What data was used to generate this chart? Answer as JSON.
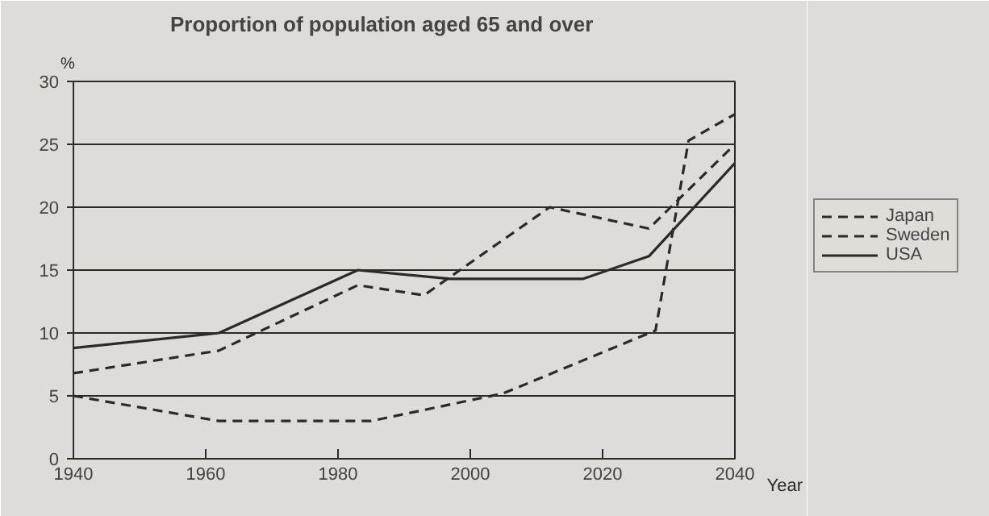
{
  "chart_data": {
    "type": "line",
    "title": "Proportion of population aged 65 and over",
    "xlabel": "Year",
    "ylabel": "%",
    "xlim": [
      1940,
      2040
    ],
    "xticks": [
      1940,
      1960,
      1980,
      2000,
      2020,
      2040
    ],
    "ylim": [
      0,
      30
    ],
    "yticks": [
      0,
      5,
      10,
      15,
      20,
      25,
      30
    ],
    "grid": "y",
    "legend": "right",
    "marker": "none",
    "series": [
      {
        "name": "Japan",
        "color": "#2a2a2a",
        "line_style": "dashed",
        "x": [
          1940,
          1962,
          1985,
          2005,
          2028,
          2033,
          2040
        ],
        "values": [
          5,
          3,
          3,
          5.2,
          10.2,
          25.3,
          27.4
        ]
      },
      {
        "name": "Sweden",
        "color": "#2a2a2a",
        "line_style": "dashed",
        "x": [
          1940,
          1962,
          1983,
          1993,
          2012,
          2027,
          2040
        ],
        "values": [
          6.8,
          8.6,
          13.8,
          13,
          20,
          18.3,
          25
        ]
      },
      {
        "name": "USA",
        "color": "#2a2a2a",
        "line_style": "solid",
        "x": [
          1940,
          1962,
          1983,
          1997,
          2017,
          2027,
          2040
        ],
        "values": [
          8.8,
          10,
          15,
          14.3,
          14.3,
          16.1,
          23.5
        ]
      }
    ]
  }
}
